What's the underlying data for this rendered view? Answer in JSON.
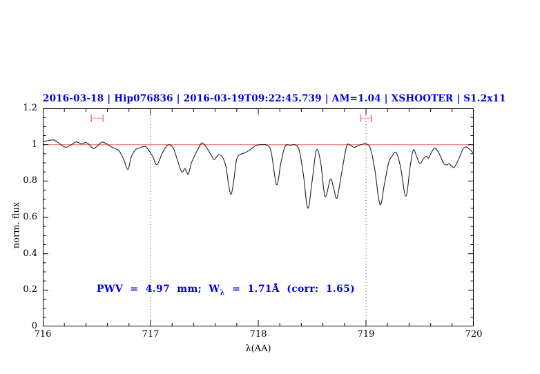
{
  "colors": {
    "title_blue": "#0000e6",
    "annotation_blue": "#0000e6",
    "spectrum_black": "#1f1f1f",
    "reference_red": "#f07373",
    "marker_red": "#eb8686",
    "marker_red_light": "#f4abab",
    "dotted_gray": "#3c3c3c",
    "frame_black": "#000000"
  },
  "chart_data": {
    "type": "line",
    "title": "2016-03-18 | Hip076836 | 2016-03-19T09:22:45.739 | AM=1.04 | XSHOOTER | S1.2x11",
    "xlabel": "λ(AA)",
    "ylabel": "norm. flux",
    "xlim": [
      716,
      720
    ],
    "ylim": [
      0,
      1.2
    ],
    "grid": "off",
    "legend": "none",
    "x_major_ticks": [
      716,
      717,
      718,
      719,
      720
    ],
    "x_tick_labels": [
      "716",
      "717",
      "718",
      "719",
      "720"
    ],
    "x_minor_step": 0.2,
    "y_major_ticks": [
      0,
      0.2,
      0.4,
      0.6,
      0.8,
      1,
      1.2
    ],
    "y_tick_labels": [
      "0",
      "0.2",
      "0.4",
      "0.6",
      "0.8",
      "1",
      "1.2"
    ],
    "y_minor_step": 0.05,
    "reference_line_y": 1.0,
    "dotted_vlines_x": [
      717,
      719
    ],
    "telluric_markers": [
      {
        "x_min": 716.45,
        "x_max": 716.56,
        "y": 1.145,
        "cap_half_height": 0.021
      },
      {
        "x_min": 718.95,
        "x_max": 719.05,
        "y": 1.145,
        "cap_half_height": 0.021
      }
    ],
    "series": [
      {
        "name": "normalized spectrum",
        "x": [
          716.0,
          716.05,
          716.1,
          716.15,
          716.21,
          716.26,
          716.31,
          716.36,
          716.4,
          716.44,
          716.47,
          716.51,
          716.55,
          716.59,
          716.63,
          716.67,
          716.71,
          716.75,
          716.79,
          716.82,
          716.86,
          716.9,
          716.95,
          716.98,
          717.02,
          717.06,
          717.11,
          717.16,
          717.21,
          717.25,
          717.29,
          717.32,
          717.35,
          717.38,
          717.41,
          717.44,
          717.48,
          717.53,
          717.57,
          717.59,
          717.62,
          717.64,
          717.67,
          717.7,
          717.72,
          717.745,
          717.77,
          717.8,
          717.84,
          717.88,
          717.93,
          717.98,
          718.03,
          718.08,
          718.12,
          718.17,
          718.21,
          718.25,
          718.3,
          718.34,
          718.38,
          718.42,
          718.46,
          718.5,
          718.54,
          718.58,
          718.62,
          718.67,
          718.7,
          718.73,
          718.77,
          718.82,
          718.86,
          718.89,
          718.93,
          718.97,
          719.0,
          719.04,
          719.08,
          719.13,
          719.17,
          719.21,
          719.24,
          719.28,
          719.32,
          719.37,
          719.41,
          719.44,
          719.47,
          719.5,
          719.53,
          719.56,
          719.58,
          719.61,
          719.64,
          719.68,
          719.72,
          719.75,
          719.77,
          719.8,
          719.82,
          719.86,
          719.9,
          719.93,
          719.96,
          720.0
        ],
        "flux": [
          1.017,
          1.022,
          1.026,
          1.008,
          0.986,
          0.998,
          1.015,
          1.004,
          1.012,
          0.995,
          0.978,
          0.995,
          1.014,
          1.005,
          0.99,
          0.979,
          0.965,
          0.92,
          0.864,
          0.93,
          0.972,
          0.983,
          0.99,
          0.972,
          0.935,
          0.89,
          0.955,
          0.998,
          0.983,
          0.914,
          0.85,
          0.868,
          0.838,
          0.9,
          0.94,
          0.975,
          1.01,
          0.975,
          0.935,
          0.918,
          0.938,
          0.945,
          0.93,
          0.88,
          0.8,
          0.726,
          0.79,
          0.92,
          0.948,
          0.956,
          0.975,
          0.996,
          1.0,
          0.997,
          0.96,
          0.78,
          0.9,
          0.992,
          0.996,
          1.0,
          0.97,
          0.83,
          0.65,
          0.8,
          0.97,
          0.9,
          0.715,
          0.81,
          0.76,
          0.706,
          0.83,
          0.99,
          0.995,
          0.985,
          0.995,
          1.003,
          1.005,
          0.98,
          0.87,
          0.67,
          0.78,
          0.9,
          0.935,
          0.957,
          0.88,
          0.716,
          0.88,
          0.971,
          0.935,
          0.896,
          0.92,
          0.937,
          0.926,
          0.96,
          0.982,
          0.95,
          0.899,
          0.888,
          0.895,
          0.88,
          0.876,
          0.92,
          0.975,
          0.987,
          0.975,
          0.952
        ]
      }
    ],
    "annotation": {
      "part1": "PWV  =  4.97  mm;  W",
      "subscript": "λ",
      "part2": "  =  1.71Å  (corr:  1.65)"
    }
  }
}
